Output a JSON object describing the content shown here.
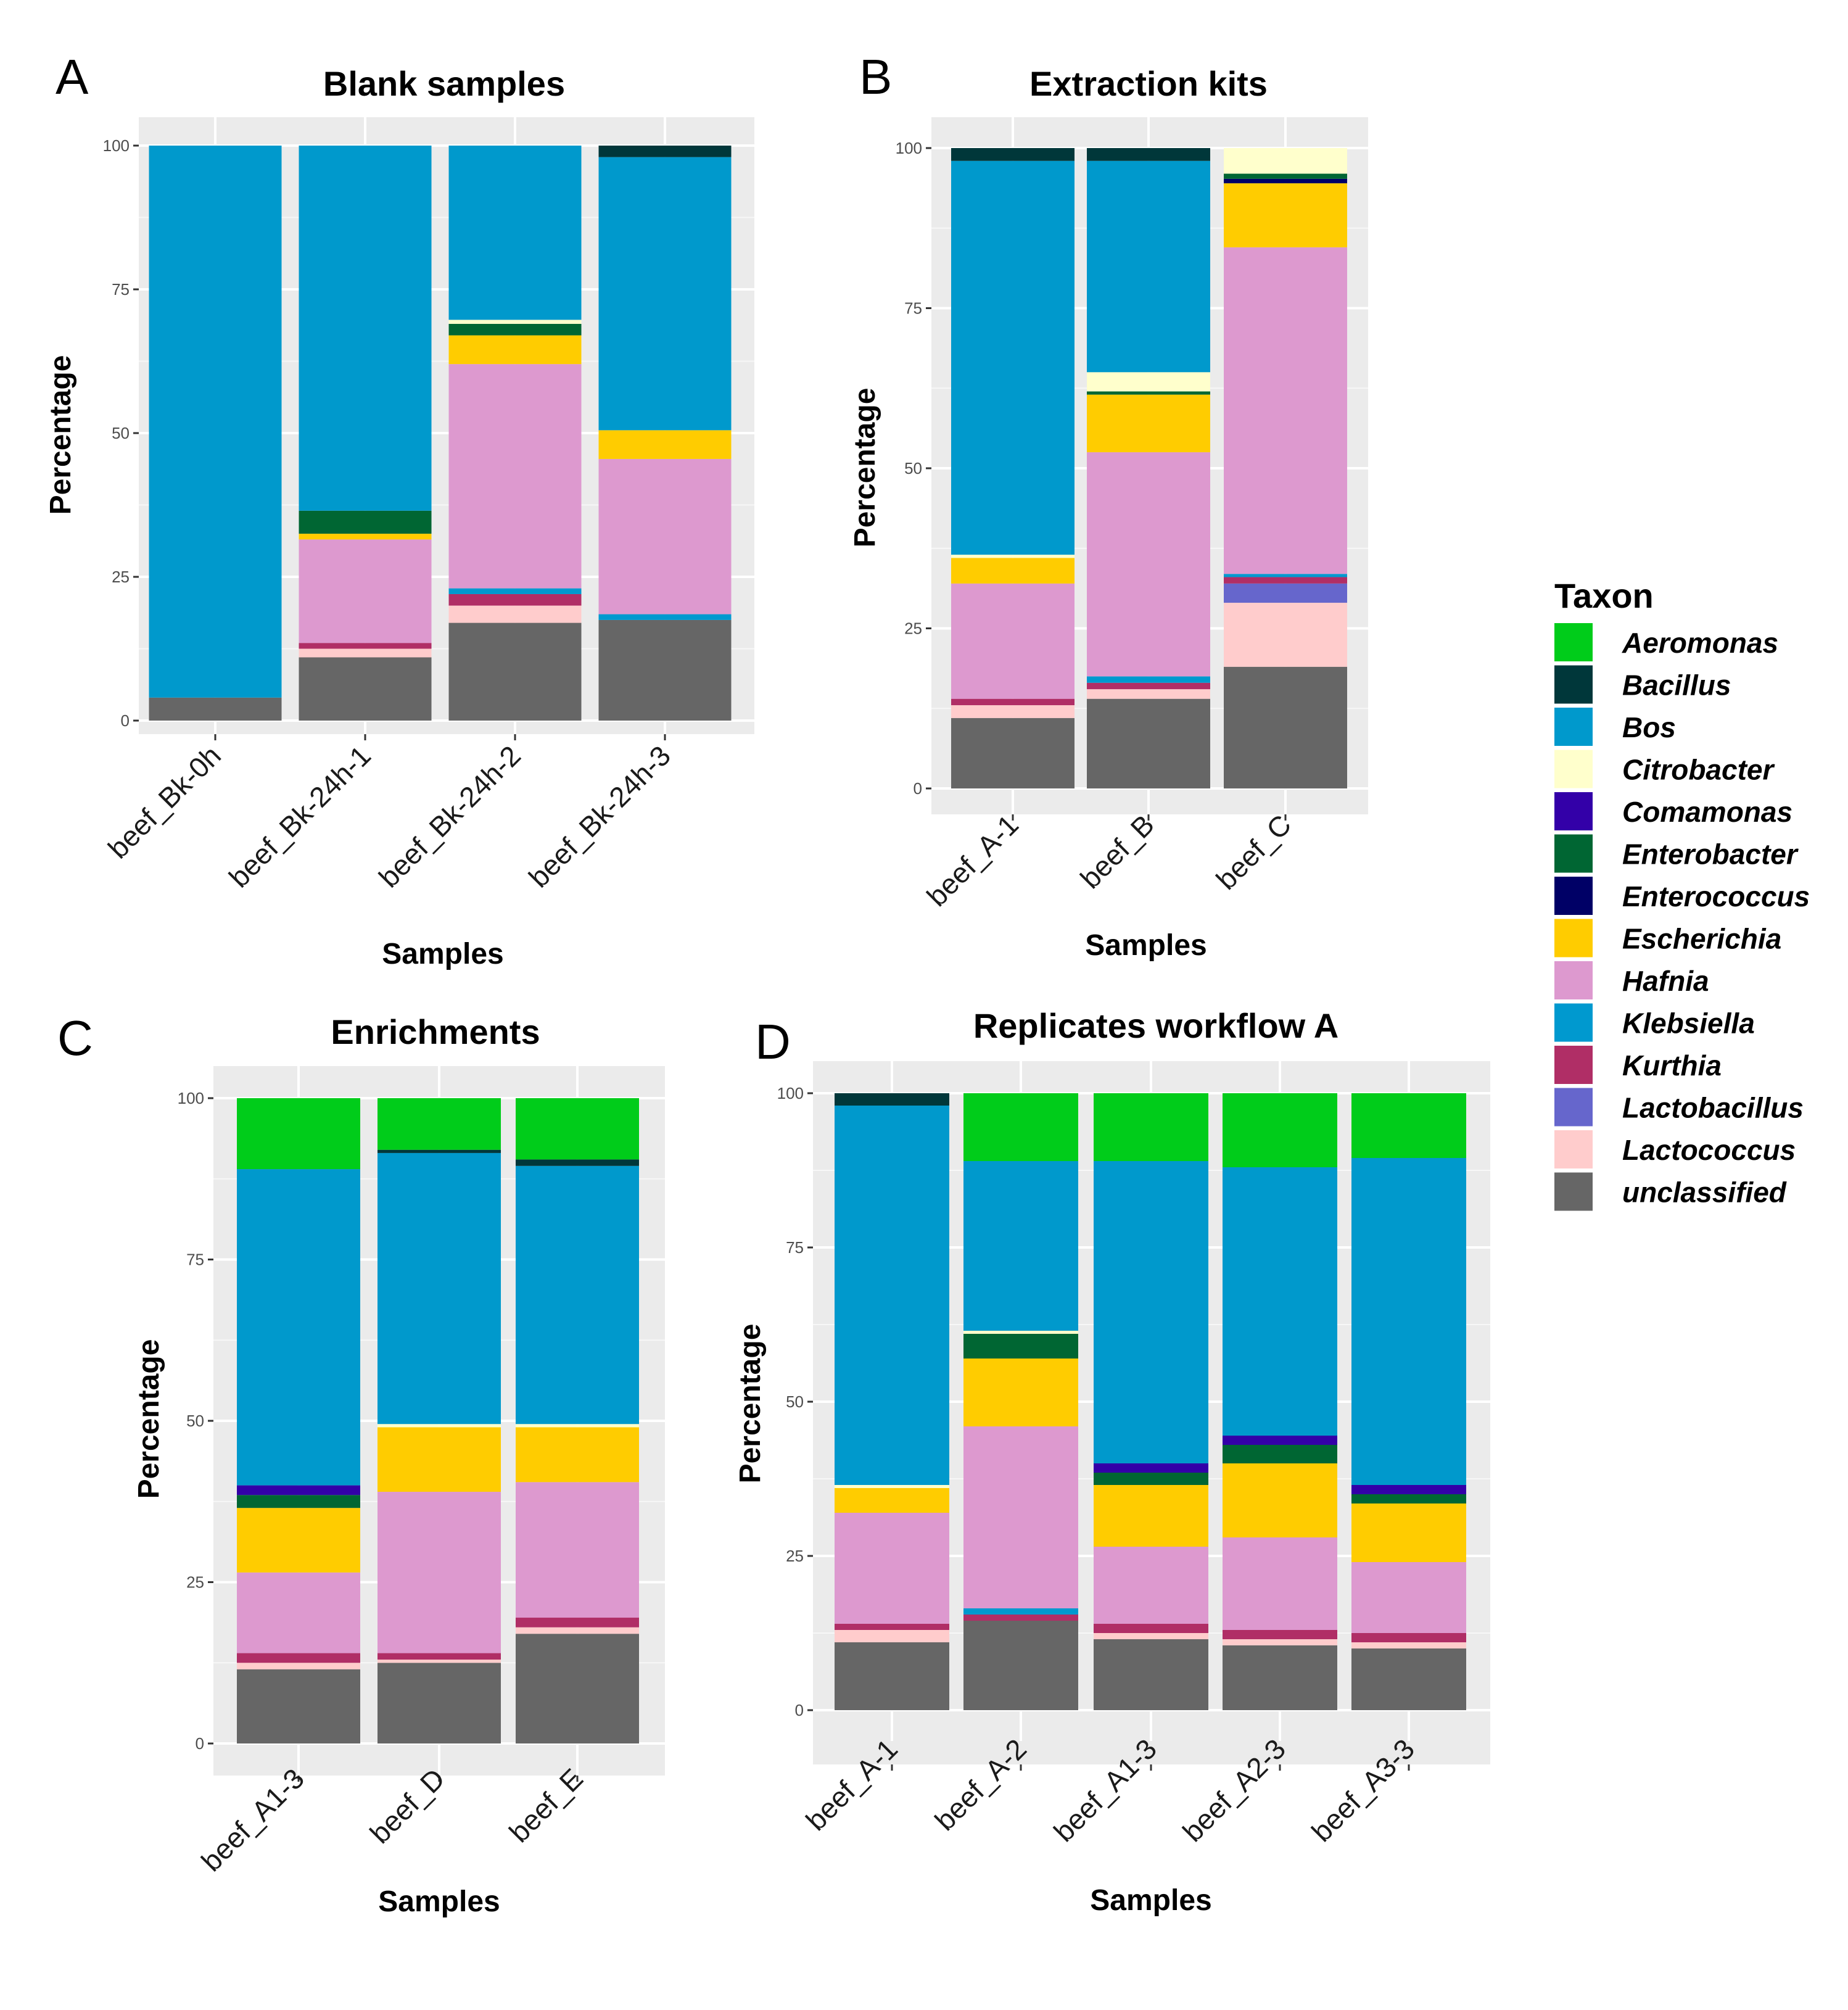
{
  "chart_data": [
    {
      "type": "bar",
      "stacked": true,
      "panel_label": "A",
      "title": "Blank samples",
      "xlabel": "Samples",
      "ylabel": "Percentage",
      "ylim": [
        0,
        100
      ],
      "yticks": [
        0,
        25,
        50,
        75,
        100
      ],
      "grid": true,
      "categories": [
        "beef_Bk-0h",
        "beef_Bk-24h-1",
        "beef_Bk-24h-2",
        "beef_Bk-24h-3"
      ],
      "series": [
        {
          "name": "unclassified",
          "values": [
            4,
            11,
            17,
            17.5
          ]
        },
        {
          "name": "Lactococcus",
          "values": [
            0,
            1.5,
            3,
            0
          ]
        },
        {
          "name": "Kurthia",
          "values": [
            0,
            1,
            2,
            0
          ]
        },
        {
          "name": "Klebsiella",
          "values": [
            0,
            0,
            1,
            1
          ]
        },
        {
          "name": "Hafnia",
          "values": [
            0,
            18,
            39,
            27
          ]
        },
        {
          "name": "Escherichia",
          "values": [
            0,
            1,
            5,
            5
          ]
        },
        {
          "name": "Enterobacter",
          "values": [
            0,
            4,
            2,
            0
          ]
        },
        {
          "name": "Citrobacter",
          "values": [
            0,
            0,
            0.7,
            0
          ]
        },
        {
          "name": "Bos",
          "values": [
            96,
            63.5,
            30.3,
            47.5
          ]
        },
        {
          "name": "Bacillus",
          "values": [
            0,
            0,
            0,
            2
          ]
        }
      ]
    },
    {
      "type": "bar",
      "stacked": true,
      "panel_label": "B",
      "title": "Extraction kits",
      "xlabel": "Samples",
      "ylabel": "Percentage",
      "ylim": [
        0,
        100
      ],
      "yticks": [
        0,
        25,
        50,
        75,
        100
      ],
      "grid": true,
      "categories": [
        "beef_A-1",
        "beef_B",
        "beef_C"
      ],
      "series": [
        {
          "name": "unclassified",
          "values": [
            11,
            14,
            19
          ]
        },
        {
          "name": "Lactococcus",
          "values": [
            2,
            1.5,
            10
          ]
        },
        {
          "name": "Lactobacillus",
          "values": [
            0,
            0,
            3
          ]
        },
        {
          "name": "Kurthia",
          "values": [
            1,
            1,
            1
          ]
        },
        {
          "name": "Klebsiella",
          "values": [
            0,
            1,
            0.5
          ]
        },
        {
          "name": "Hafnia",
          "values": [
            18,
            35,
            51
          ]
        },
        {
          "name": "Escherichia",
          "values": [
            4,
            9,
            10
          ]
        },
        {
          "name": "Enterococcus",
          "values": [
            0,
            0,
            0.7
          ]
        },
        {
          "name": "Enterobacter",
          "values": [
            0,
            0.5,
            0.8
          ]
        },
        {
          "name": "Citrobacter",
          "values": [
            0.5,
            3,
            4
          ]
        },
        {
          "name": "Bos",
          "values": [
            61.5,
            33,
            0
          ]
        },
        {
          "name": "Bacillus",
          "values": [
            2,
            2,
            0
          ]
        }
      ]
    },
    {
      "type": "bar",
      "stacked": true,
      "panel_label": "C",
      "title": "Enrichments",
      "xlabel": "Samples",
      "ylabel": "Percentage",
      "ylim": [
        0,
        100
      ],
      "yticks": [
        0,
        25,
        50,
        75,
        100
      ],
      "grid": true,
      "categories": [
        "beef_A1-3",
        "beef_D",
        "beef_E"
      ],
      "series": [
        {
          "name": "unclassified",
          "values": [
            11.5,
            12.5,
            17
          ]
        },
        {
          "name": "Lactococcus",
          "values": [
            1,
            0.5,
            1
          ]
        },
        {
          "name": "Kurthia",
          "values": [
            1.5,
            1,
            1.5
          ]
        },
        {
          "name": "Hafnia",
          "values": [
            12.5,
            25,
            21
          ]
        },
        {
          "name": "Escherichia",
          "values": [
            10,
            10,
            8.5
          ]
        },
        {
          "name": "Enterobacter",
          "values": [
            2,
            0,
            0
          ]
        },
        {
          "name": "Comamonas",
          "values": [
            1.5,
            0,
            0
          ]
        },
        {
          "name": "Citrobacter",
          "values": [
            0,
            0.5,
            0.5
          ]
        },
        {
          "name": "Bos",
          "values": [
            49,
            42,
            40
          ]
        },
        {
          "name": "Bacillus",
          "values": [
            0,
            0.5,
            1
          ]
        },
        {
          "name": "Aeromonas",
          "values": [
            11,
            8,
            9.5
          ]
        }
      ]
    },
    {
      "type": "bar",
      "stacked": true,
      "panel_label": "D",
      "title": "Replicates workflow A",
      "xlabel": "Samples",
      "ylabel": "Percentage",
      "ylim": [
        0,
        100
      ],
      "yticks": [
        0,
        25,
        50,
        75,
        100
      ],
      "grid": true,
      "categories": [
        "beef_A-1",
        "beef_A-2",
        "beef_A1-3",
        "beef_A2-3",
        "beef_A3-3"
      ],
      "series": [
        {
          "name": "unclassified",
          "values": [
            11,
            14.5,
            11.5,
            10.5,
            10
          ]
        },
        {
          "name": "Lactococcus",
          "values": [
            2,
            0,
            1,
            1,
            1
          ]
        },
        {
          "name": "Kurthia",
          "values": [
            1,
            1,
            1.5,
            1.5,
            1.5
          ]
        },
        {
          "name": "Klebsiella",
          "values": [
            0,
            1,
            0,
            0,
            0
          ]
        },
        {
          "name": "Hafnia",
          "values": [
            18,
            29.5,
            12.5,
            15,
            11.5
          ]
        },
        {
          "name": "Escherichia",
          "values": [
            4,
            11,
            10,
            12,
            9.5
          ]
        },
        {
          "name": "Enterobacter",
          "values": [
            0,
            4,
            2,
            3,
            1.5
          ]
        },
        {
          "name": "Comamonas",
          "values": [
            0,
            0,
            1.5,
            1.5,
            1.5
          ]
        },
        {
          "name": "Citrobacter",
          "values": [
            0.5,
            0.5,
            0,
            0,
            0
          ]
        },
        {
          "name": "Bos",
          "values": [
            61.5,
            27.5,
            49,
            43.5,
            53
          ]
        },
        {
          "name": "Bacillus",
          "values": [
            2,
            0,
            0,
            0,
            0
          ]
        },
        {
          "name": "Aeromonas",
          "values": [
            0,
            11,
            11,
            12,
            10.5
          ]
        }
      ]
    }
  ],
  "legend": {
    "title": "Taxon",
    "placement": "right",
    "items": [
      {
        "name": "Aeromonas",
        "color": "#00CC1A"
      },
      {
        "name": "Bacillus",
        "color": "#00373A"
      },
      {
        "name": "Bos",
        "color": "#0099CC"
      },
      {
        "name": "Citrobacter",
        "color": "#FFFFCC"
      },
      {
        "name": "Comamonas",
        "color": "#3300A8"
      },
      {
        "name": "Enterobacter",
        "color": "#006633"
      },
      {
        "name": "Enterococcus",
        "color": "#000066"
      },
      {
        "name": "Escherichia",
        "color": "#FFCC00"
      },
      {
        "name": "Hafnia",
        "color": "#DD99CF"
      },
      {
        "name": "Klebsiella",
        "color": "#0099CF"
      },
      {
        "name": "Kurthia",
        "color": "#B02E66"
      },
      {
        "name": "Lactobacillus",
        "color": "#6666CC"
      },
      {
        "name": "Lactococcus",
        "color": "#FFCCCC"
      },
      {
        "name": "unclassified",
        "color": "#666666"
      }
    ]
  }
}
